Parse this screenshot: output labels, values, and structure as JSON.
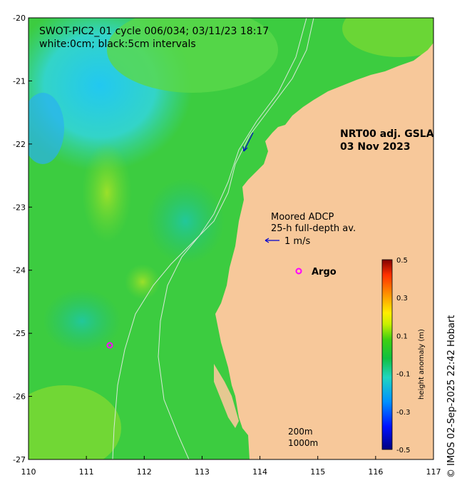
{
  "map": {
    "title_line1": "SWOT-PIC2_01 cycle 006/034; 03/11/23 18:17",
    "title_line2": "white:0cm; black:5cm intervals",
    "product_line1": "NRT00 adj. GSLA",
    "product_line2": "03 Nov 2023",
    "adcp_line1": "Moored ADCP",
    "adcp_line2": "25-h full-depth av.",
    "vector_scale_label": "1 m/s",
    "argo_label": "Argo",
    "isobath_200": "200m",
    "isobath_1000": "1000m",
    "credit": "© IMOS 02-Sep-2025 22:42 Hobart",
    "x_ticks": [
      "110",
      "111",
      "112",
      "113",
      "114",
      "115",
      "116",
      "117"
    ],
    "y_ticks": [
      "-20",
      "-21",
      "-22",
      "-23",
      "-24",
      "-25",
      "-26",
      "-27"
    ],
    "land_color": "#f7c89a",
    "argo_color": "#ff00ff",
    "vector_color": "#0000cc"
  },
  "colorbar": {
    "label": "height anomaly (m)",
    "ticks": [
      "0.5",
      "0.3",
      "0.1",
      "-0.1",
      "-0.3",
      "-0.5"
    ]
  }
}
